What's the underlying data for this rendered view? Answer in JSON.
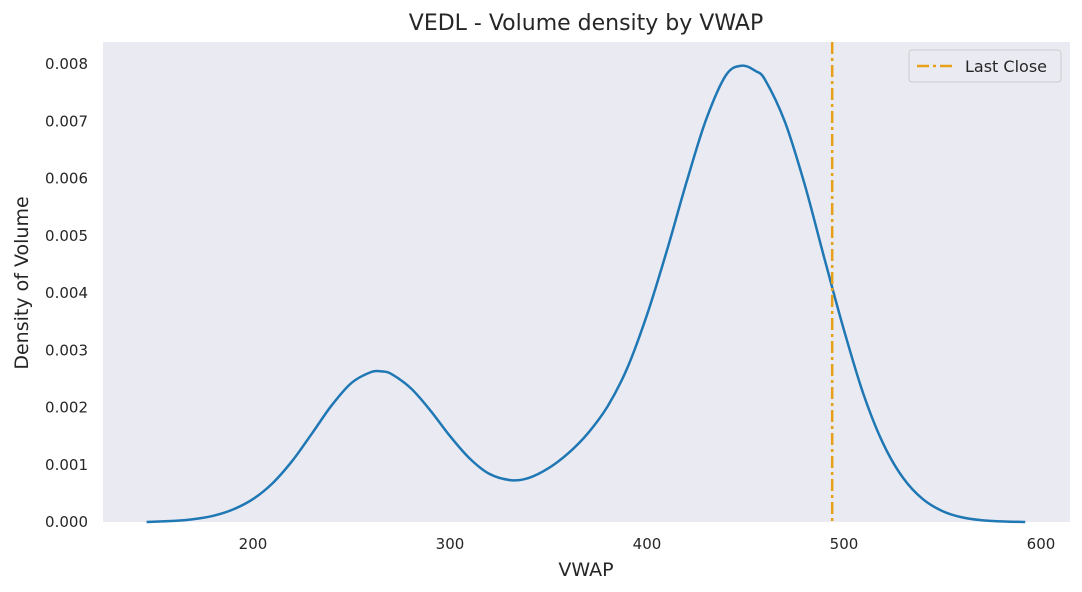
{
  "chart_data": {
    "type": "line",
    "title": "VEDL - Volume density by VWAP",
    "xlabel": "VWAP",
    "ylabel": "Density of Volume",
    "xlim": [
      122,
      1070
    ],
    "ylim": [
      0,
      0.0084
    ],
    "x_ticks": [
      200,
      300,
      400,
      500,
      600
    ],
    "x_tick_labels": [
      "200",
      "300",
      "400",
      "500",
      "600"
    ],
    "y_ticks": [
      0,
      0.001,
      0.002,
      0.003,
      0.004,
      0.005,
      0.006,
      0.007,
      0.008
    ],
    "y_tick_labels": [
      "0.000",
      "0.001",
      "0.002",
      "0.003",
      "0.004",
      "0.005",
      "0.006",
      "0.007",
      "0.008"
    ],
    "grid": false,
    "background_color": "#eaeaf2",
    "series": [
      {
        "color": "#1f77b4",
        "x": [
          146,
          160,
          170,
          180,
          190,
          200,
          210,
          220,
          230,
          240,
          250,
          260,
          265,
          270,
          280,
          290,
          300,
          310,
          320,
          331,
          340,
          350,
          360,
          370,
          380,
          390,
          400,
          410,
          420,
          430,
          440,
          448,
          455,
          460,
          470,
          480,
          490,
          500,
          510,
          520,
          530,
          540,
          550,
          560,
          570,
          580,
          592
        ],
        "y": [
          0.0,
          2e-05,
          5e-05,
          0.00011,
          0.00022,
          0.0004,
          0.00068,
          0.00107,
          0.00155,
          0.00204,
          0.00243,
          0.00262,
          0.00263,
          0.00259,
          0.00234,
          0.00195,
          0.0015,
          0.00111,
          0.00084,
          0.00073,
          0.00077,
          0.00094,
          0.0012,
          0.00155,
          0.00202,
          0.00269,
          0.00362,
          0.00473,
          0.00593,
          0.00703,
          0.0078,
          0.00797,
          0.00788,
          0.00772,
          0.00699,
          0.0059,
          0.00461,
          0.00335,
          0.00222,
          0.00136,
          0.00077,
          0.0004,
          0.00019,
          8e-05,
          3e-05,
          1e-05,
          0.0
        ]
      }
    ],
    "reference_lines": [
      {
        "label": "Last Close",
        "x": 494,
        "color": "#e6a019",
        "style": "dashdot"
      }
    ],
    "legend": {
      "position": "top-right",
      "entries": [
        "Last Close"
      ]
    }
  }
}
